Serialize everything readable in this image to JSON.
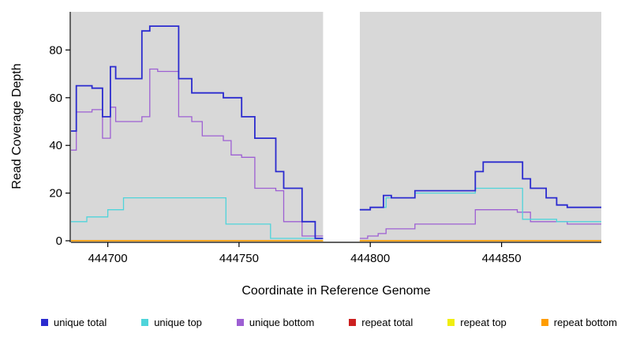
{
  "chart_data": {
    "type": "line",
    "style": "step",
    "title": "",
    "xlabel": "Coordinate in Reference Genome",
    "ylabel": "Read Coverage Depth",
    "xlim": [
      444686,
      444888
    ],
    "ylim": [
      0,
      96
    ],
    "xticks": [
      444700,
      444750,
      444800,
      444850
    ],
    "yticks": [
      0,
      20,
      40,
      60,
      80
    ],
    "panel_bg": "#d8d8d8",
    "page_bg": "#ffffff",
    "axis_color": "#000000",
    "gap_region": {
      "x0": 444782,
      "x1": 444796
    },
    "series": [
      {
        "name": "repeat total",
        "color": "#cc2020",
        "width": 1.2,
        "segments": [
          {
            "points": [
              [
                444686,
                0
              ]
            ],
            "xend": 444782
          },
          {
            "points": [
              [
                444796,
                0
              ]
            ],
            "xend": 444888
          }
        ]
      },
      {
        "name": "repeat top",
        "color": "#f0ee10",
        "width": 1.2,
        "segments": [
          {
            "points": [
              [
                444686,
                0
              ]
            ],
            "xend": 444782
          },
          {
            "points": [
              [
                444796,
                0
              ]
            ],
            "xend": 444888
          }
        ]
      },
      {
        "name": "repeat bottom",
        "color": "#ff9d00",
        "width": 1.6,
        "segments": [
          {
            "points": [
              [
                444686,
                0
              ]
            ],
            "xend": 444782
          },
          {
            "points": [
              [
                444796,
                0
              ]
            ],
            "xend": 444888
          }
        ]
      },
      {
        "name": "unique bottom",
        "color": "#9d5fd3",
        "width": 1.3,
        "segments": [
          {
            "points": [
              [
                444686,
                38
              ],
              [
                444688,
                54
              ],
              [
                444694,
                55
              ],
              [
                444698,
                43
              ],
              [
                444701,
                56
              ],
              [
                444703,
                50
              ],
              [
                444713,
                52
              ],
              [
                444716,
                72
              ],
              [
                444719,
                71
              ],
              [
                444727,
                52
              ],
              [
                444732,
                50
              ],
              [
                444736,
                44
              ],
              [
                444744,
                42
              ],
              [
                444747,
                36
              ],
              [
                444751,
                35
              ],
              [
                444756,
                22
              ],
              [
                444764,
                21
              ],
              [
                444767,
                8
              ],
              [
                444774,
                2
              ]
            ],
            "xend": 444782
          },
          {
            "points": [
              [
                444796,
                1
              ],
              [
                444799,
                2
              ],
              [
                444803,
                3
              ],
              [
                444806,
                5
              ],
              [
                444817,
                7
              ],
              [
                444840,
                13
              ],
              [
                444856,
                12
              ],
              [
                444861,
                8
              ],
              [
                444875,
                7
              ]
            ],
            "xend": 444888
          }
        ]
      },
      {
        "name": "unique top",
        "color": "#4fd4da",
        "width": 1.3,
        "segments": [
          {
            "points": [
              [
                444686,
                8
              ],
              [
                444692,
                10
              ],
              [
                444700,
                13
              ],
              [
                444706,
                18
              ],
              [
                444745,
                7
              ],
              [
                444762,
                1
              ]
            ],
            "xend": 444782
          },
          {
            "points": [
              [
                444796,
                13
              ],
              [
                444800,
                14
              ],
              [
                444806,
                18
              ],
              [
                444817,
                20
              ],
              [
                444840,
                22
              ],
              [
                444858,
                9
              ],
              [
                444871,
                8
              ]
            ],
            "xend": 444888
          }
        ]
      },
      {
        "name": "unique total",
        "color": "#2b2bcf",
        "width": 1.8,
        "segments": [
          {
            "points": [
              [
                444686,
                46
              ],
              [
                444688,
                65
              ],
              [
                444694,
                64
              ],
              [
                444698,
                52
              ],
              [
                444701,
                73
              ],
              [
                444703,
                68
              ],
              [
                444713,
                88
              ],
              [
                444716,
                90
              ],
              [
                444727,
                68
              ],
              [
                444732,
                62
              ],
              [
                444744,
                60
              ],
              [
                444751,
                52
              ],
              [
                444756,
                43
              ],
              [
                444764,
                29
              ],
              [
                444767,
                22
              ],
              [
                444774,
                8
              ],
              [
                444779,
                1
              ]
            ],
            "xend": 444782
          },
          {
            "points": [
              [
                444796,
                13
              ],
              [
                444800,
                14
              ],
              [
                444805,
                19
              ],
              [
                444808,
                18
              ],
              [
                444817,
                21
              ],
              [
                444840,
                29
              ],
              [
                444843,
                33
              ],
              [
                444858,
                26
              ],
              [
                444861,
                22
              ],
              [
                444867,
                18
              ],
              [
                444871,
                15
              ],
              [
                444875,
                14
              ]
            ],
            "xend": 444888
          }
        ]
      }
    ],
    "legend": [
      {
        "label": "unique total",
        "color": "#2b2bcf"
      },
      {
        "label": "unique top",
        "color": "#4fd4da"
      },
      {
        "label": "unique bottom",
        "color": "#9d5fd3"
      },
      {
        "label": "repeat total",
        "color": "#cc2020"
      },
      {
        "label": "repeat top",
        "color": "#f0ee10"
      },
      {
        "label": "repeat bottom",
        "color": "#ff9d00"
      }
    ]
  }
}
